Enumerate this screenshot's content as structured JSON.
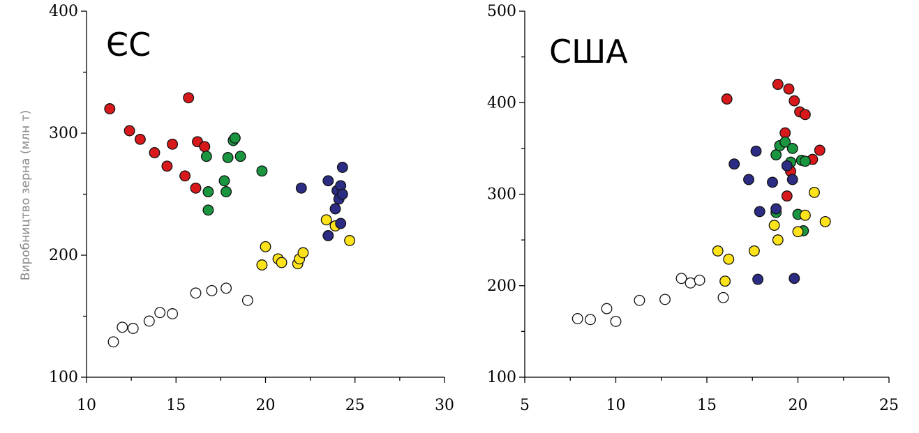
{
  "chart_data": [
    {
      "type": "scatter",
      "title": "ЄС",
      "ylabel": "Виробництво зерна (млн т)",
      "xlabel": "",
      "xlim": [
        10,
        30
      ],
      "ylim": [
        100,
        400
      ],
      "xticks": [
        10,
        15,
        20,
        25,
        30
      ],
      "yticks": [
        100,
        200,
        300,
        400
      ],
      "grid": false,
      "series": [
        {
          "color": "#ffffff",
          "points": [
            [
              11.5,
              129
            ],
            [
              12.0,
              141
            ],
            [
              12.6,
              140
            ],
            [
              13.5,
              146
            ],
            [
              14.1,
              153
            ],
            [
              14.8,
              152
            ],
            [
              16.1,
              169
            ],
            [
              17.0,
              171
            ],
            [
              17.8,
              173
            ],
            [
              19.0,
              163
            ]
          ]
        },
        {
          "color": "#d7191c",
          "points": [
            [
              11.3,
              320
            ],
            [
              12.4,
              302
            ],
            [
              13.0,
              295
            ],
            [
              13.8,
              284
            ],
            [
              14.5,
              273
            ],
            [
              14.8,
              291
            ],
            [
              15.5,
              265
            ],
            [
              15.7,
              329
            ],
            [
              16.1,
              255
            ],
            [
              16.2,
              293
            ],
            [
              16.6,
              289
            ]
          ]
        },
        {
          "color": "#1a9641",
          "points": [
            [
              16.7,
              281
            ],
            [
              16.8,
              252
            ],
            [
              16.8,
              237
            ],
            [
              17.7,
              261
            ],
            [
              17.8,
              252
            ],
            [
              17.9,
              280
            ],
            [
              18.2,
              294
            ],
            [
              18.3,
              296
            ],
            [
              18.6,
              281
            ],
            [
              19.8,
              269
            ]
          ]
        },
        {
          "color": "#ffe31a",
          "points": [
            [
              19.8,
              192
            ],
            [
              20.0,
              207
            ],
            [
              20.7,
              197
            ],
            [
              20.9,
              194
            ],
            [
              21.8,
              193
            ],
            [
              21.9,
              197
            ],
            [
              22.1,
              202
            ],
            [
              23.4,
              229
            ],
            [
              23.9,
              224
            ],
            [
              24.7,
              212
            ]
          ]
        },
        {
          "color": "#2c2c84",
          "points": [
            [
              22.0,
              255
            ],
            [
              23.5,
              216
            ],
            [
              23.5,
              261
            ],
            [
              23.9,
              238
            ],
            [
              24.0,
              253
            ],
            [
              24.1,
              246
            ],
            [
              24.2,
              226
            ],
            [
              24.2,
              257
            ],
            [
              24.3,
              250
            ],
            [
              24.3,
              272
            ]
          ]
        }
      ]
    },
    {
      "type": "scatter",
      "title": "США",
      "xlabel": "",
      "ylabel": "",
      "xlim": [
        5,
        25
      ],
      "ylim": [
        100,
        500
      ],
      "xticks": [
        5,
        10,
        15,
        20,
        25
      ],
      "yticks": [
        100,
        200,
        300,
        400,
        500
      ],
      "grid": false,
      "series": [
        {
          "color": "#ffffff",
          "points": [
            [
              7.9,
              164
            ],
            [
              8.6,
              163
            ],
            [
              9.5,
              175
            ],
            [
              10.0,
              161
            ],
            [
              11.3,
              184
            ],
            [
              12.7,
              185
            ],
            [
              13.6,
              208
            ],
            [
              14.1,
              203
            ],
            [
              14.6,
              206
            ],
            [
              15.9,
              187
            ]
          ]
        },
        {
          "color": "#d7191c",
          "points": [
            [
              16.1,
              404
            ],
            [
              18.9,
              420
            ],
            [
              19.3,
              367
            ],
            [
              19.4,
              298
            ],
            [
              19.5,
              415
            ],
            [
              19.6,
              325
            ],
            [
              19.8,
              402
            ],
            [
              20.1,
              390
            ],
            [
              20.4,
              387
            ],
            [
              20.8,
              338
            ],
            [
              21.2,
              348
            ]
          ]
        },
        {
          "color": "#1a9641",
          "points": [
            [
              18.8,
              343
            ],
            [
              18.8,
              280
            ],
            [
              19.0,
              353
            ],
            [
              19.3,
              357
            ],
            [
              19.6,
              335
            ],
            [
              19.7,
              350
            ],
            [
              20.0,
              278
            ],
            [
              20.2,
              337
            ],
            [
              20.3,
              260
            ],
            [
              20.4,
              336
            ]
          ]
        },
        {
          "color": "#ffe31a",
          "points": [
            [
              15.6,
              238
            ],
            [
              16.0,
              205
            ],
            [
              16.2,
              229
            ],
            [
              17.6,
              238
            ],
            [
              18.7,
              266
            ],
            [
              18.9,
              250
            ],
            [
              20.0,
              259
            ],
            [
              20.4,
              277
            ],
            [
              20.9,
              302
            ],
            [
              21.5,
              270
            ]
          ]
        },
        {
          "color": "#2c2c84",
          "points": [
            [
              16.5,
              333
            ],
            [
              17.3,
              316
            ],
            [
              17.7,
              347
            ],
            [
              17.8,
              207
            ],
            [
              17.9,
              281
            ],
            [
              18.6,
              313
            ],
            [
              18.8,
              284
            ],
            [
              19.4,
              331
            ],
            [
              19.7,
              316
            ],
            [
              19.8,
              208
            ]
          ]
        }
      ]
    }
  ]
}
